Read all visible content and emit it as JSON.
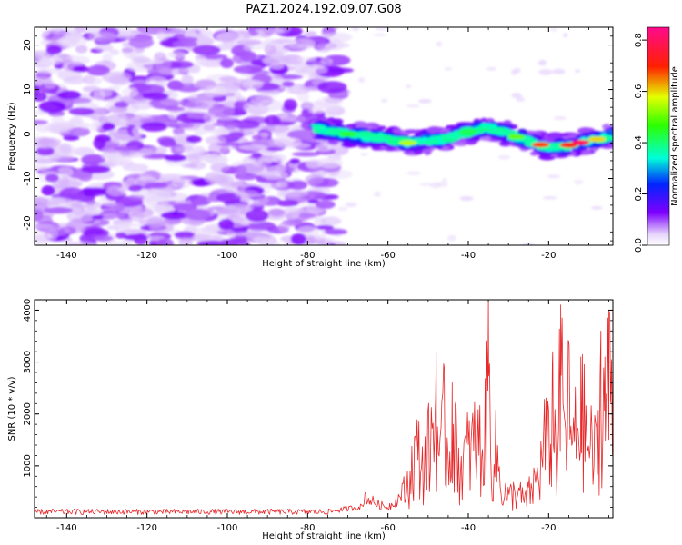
{
  "figure": {
    "title": "PAZ1.2024.192.09.07.G08"
  },
  "chart_data": [
    {
      "type": "heatmap",
      "title": "PAZ1.2024.192.09.07.G08",
      "xlabel": "Height of straight line (km)",
      "ylabel": "Frequency (Hz)",
      "xlim": [
        -148,
        -4
      ],
      "ylim": [
        -25,
        24
      ],
      "x_ticks": [
        -140,
        -120,
        -100,
        -80,
        -60,
        -40,
        -20
      ],
      "y_ticks": [
        20,
        10,
        0,
        -10,
        -20
      ],
      "colorbar": {
        "label": "Normalized spectral amplitude",
        "range": [
          0,
          0.85
        ],
        "ticks": [
          "0.0",
          "0.2",
          "0.4",
          "0.6",
          "0.8"
        ],
        "colormap": "gist_rainbow (white → violet → blue → cyan → green → yellow → red → magenta)"
      },
      "regions": [
        {
          "name": "noise",
          "x_range": [
            -148,
            -78
          ],
          "freq_range": [
            -25,
            24
          ],
          "amplitude": [
            0.02,
            0.12
          ]
        },
        {
          "name": "signal-ridge",
          "x_range": [
            -78,
            -4
          ],
          "amplitude": [
            0.15,
            0.82
          ],
          "centerline": [
            [
              -78,
              1.5
            ],
            [
              -70,
              0.0
            ],
            [
              -60,
              -1.0
            ],
            [
              -55,
              -2.0
            ],
            [
              -50,
              -1.5
            ],
            [
              -45,
              -1.0
            ],
            [
              -40,
              0.5
            ],
            [
              -35,
              1.5
            ],
            [
              -30,
              0.0
            ],
            [
              -25,
              -1.5
            ],
            [
              -20,
              -3.0
            ],
            [
              -15,
              -2.5
            ],
            [
              -10,
              -1.5
            ],
            [
              -4,
              -0.5
            ]
          ]
        }
      ]
    },
    {
      "type": "line",
      "xlabel": "Height of straight line (km)",
      "ylabel": "SNR (10 * v/v)",
      "xlim": [
        -148,
        -4
      ],
      "ylim": [
        0,
        4200
      ],
      "x_ticks": [
        -140,
        -120,
        -100,
        -80,
        -60,
        -40,
        -20
      ],
      "y_ticks": [
        1000,
        2000,
        3000,
        4000
      ],
      "color": "#e8282a",
      "series": [
        {
          "x": [
            -148,
            -140,
            -130,
            -120,
            -110,
            -100,
            -90,
            -80,
            -75,
            -70,
            -67,
            -65,
            -62,
            -60,
            -57,
            -55,
            -53,
            -51,
            -49,
            -48,
            -47,
            -46,
            -45,
            -44,
            -42,
            -40,
            -38,
            -36,
            -35,
            -34,
            -33,
            -32,
            -30,
            -28,
            -26,
            -24,
            -22,
            -21,
            -20,
            -19,
            -18,
            -17,
            -16,
            -15,
            -14,
            -12,
            -10,
            -8,
            -7,
            -6,
            -5,
            -4
          ],
          "y": [
            100,
            110,
            100,
            110,
            100,
            110,
            120,
            150,
            250,
            400,
            650,
            450,
            300,
            250,
            500,
            1000,
            2000,
            1500,
            2500,
            3200,
            1500,
            2900,
            1800,
            2600,
            1500,
            2000,
            2300,
            2000,
            4200,
            1500,
            2000,
            1000,
            600,
            800,
            500,
            900,
            1500,
            2400,
            2000,
            3200,
            1800,
            4100,
            2500,
            3400,
            2100,
            3100,
            2200,
            1800,
            3600,
            3100,
            4000,
            3300
          ]
        }
      ]
    }
  ]
}
